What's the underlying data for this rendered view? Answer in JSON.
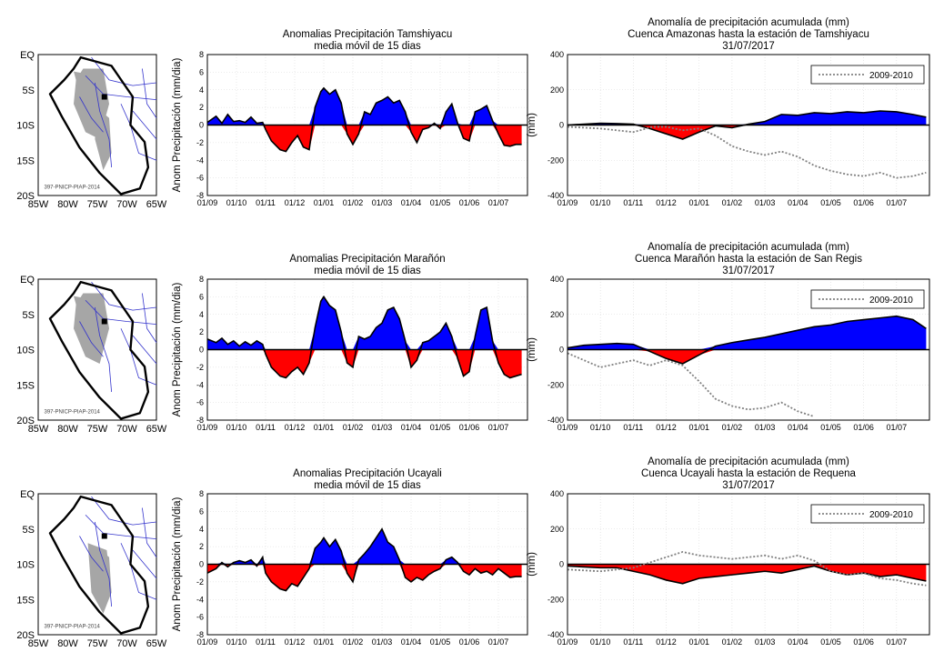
{
  "colors": {
    "positive": "#0000ff",
    "negative": "#ff0000",
    "line": "#000000",
    "map_fill": "#a6a6a6",
    "rivers": "#3333cc",
    "grid": "#d9d9d9",
    "ref": "#808080"
  },
  "map": {
    "y_ticks": [
      "EQ",
      "5S",
      "10S",
      "15S",
      "20S"
    ],
    "x_ticks": [
      "85W",
      "80W",
      "75W",
      "70W",
      "65W"
    ],
    "watermark": "397-PNICP-PIAP-2014"
  },
  "chart_data": [
    {
      "type": "area",
      "row": 0,
      "title": [
        "Anomalias Precipitación Tamshiyacu",
        "media móvil de 15 dias"
      ],
      "ylabel": "Anom Precipitación (mm/dia)",
      "ylim": [
        -8,
        8
      ],
      "yticks": [
        8,
        6,
        4,
        2,
        0,
        -2,
        -4,
        -6,
        -8
      ],
      "xticks": [
        "01/09",
        "01/10",
        "01/11",
        "01/12",
        "01/01",
        "01/02",
        "01/03",
        "01/04",
        "01/05",
        "01/06",
        "01/07"
      ],
      "x_unit": "month index from 01/09/2016",
      "x": [
        0,
        0.3,
        0.5,
        0.7,
        0.9,
        1.1,
        1.3,
        1.5,
        1.7,
        1.9,
        2.0,
        2.2,
        2.5,
        2.7,
        2.9,
        3.1,
        3.3,
        3.5,
        3.7,
        3.9,
        4.0,
        4.2,
        4.4,
        4.6,
        4.8,
        5.0,
        5.2,
        5.4,
        5.6,
        5.8,
        6.0,
        6.2,
        6.4,
        6.6,
        6.8,
        7.0,
        7.2,
        7.4,
        7.6,
        7.8,
        8.0,
        8.2,
        8.4,
        8.6,
        8.8,
        9.0,
        9.2,
        9.4,
        9.6,
        9.8,
        10.0,
        10.2,
        10.4,
        10.6,
        10.8
      ],
      "values": [
        0.3,
        1.0,
        0.2,
        1.2,
        0.4,
        0.5,
        0.3,
        0.9,
        0.2,
        0.3,
        -0.5,
        -1.8,
        -2.8,
        -3.0,
        -2.0,
        -1.2,
        -2.5,
        -2.8,
        2.0,
        3.8,
        4.2,
        3.5,
        4.0,
        2.5,
        -1.0,
        -2.2,
        -1.0,
        1.5,
        1.2,
        2.5,
        2.8,
        3.2,
        2.5,
        2.8,
        1.5,
        -0.8,
        -2.0,
        -0.5,
        -0.3,
        0.2,
        -0.4,
        1.5,
        2.4,
        0.2,
        -1.5,
        -1.8,
        1.5,
        1.8,
        2.2,
        0.5,
        -1.0,
        -2.3,
        -2.4,
        -2.2,
        -2.2
      ]
    },
    {
      "type": "area",
      "row": 0,
      "title": [
        "Anomalía de precipitación acumulada (mm)",
        "Cuenca Amazonas hasta la estación de Tamshiyacu",
        "31/07/2017"
      ],
      "ylabel": "(mm)",
      "ylim": [
        -400,
        400
      ],
      "yticks": [
        400,
        200,
        0,
        -200,
        -400
      ],
      "xticks": [
        "01/09",
        "01/10",
        "01/11",
        "01/12",
        "01/01",
        "01/02",
        "01/03",
        "01/04",
        "01/05",
        "01/06",
        "01/07"
      ],
      "x_unit": "month index from 01/09/2016",
      "legend": "2009-2010",
      "x": [
        0,
        0.5,
        1.0,
        1.5,
        2.0,
        2.5,
        3.0,
        3.5,
        4.0,
        4.5,
        5.0,
        5.5,
        6.0,
        6.5,
        7.0,
        7.5,
        8.0,
        8.5,
        9.0,
        9.5,
        10.0,
        10.5,
        10.9
      ],
      "values": [
        0,
        5,
        10,
        8,
        5,
        -20,
        -50,
        -80,
        -40,
        -5,
        -15,
        5,
        20,
        60,
        55,
        70,
        65,
        75,
        70,
        80,
        75,
        60,
        45
      ],
      "ref_x": [
        0,
        1.0,
        2.0,
        2.6,
        3.0,
        3.5,
        4.0,
        4.5,
        5.0,
        5.5,
        6.0,
        6.5,
        7.0,
        7.5,
        8.0,
        8.5,
        9.0,
        9.5,
        10.0,
        10.5,
        10.9
      ],
      "ref_values": [
        -10,
        -20,
        -40,
        -10,
        -10,
        -30,
        -20,
        -60,
        -120,
        -150,
        -170,
        -150,
        -180,
        -230,
        -260,
        -280,
        -290,
        -270,
        -300,
        -290,
        -270
      ]
    },
    {
      "type": "area",
      "row": 1,
      "title": [
        "Anomalias Precipitación Marañón",
        "media móvil de 15 dias"
      ],
      "ylabel": "Anom Precipitación (mm/dia)",
      "ylim": [
        -8,
        8
      ],
      "yticks": [
        8,
        6,
        4,
        2,
        0,
        -2,
        -4,
        -6,
        -8
      ],
      "xticks": [
        "01/09",
        "01/10",
        "01/11",
        "01/12",
        "01/01",
        "01/02",
        "01/03",
        "01/04",
        "01/05",
        "01/06",
        "01/07"
      ],
      "x_unit": "month index from 01/09/2016",
      "x": [
        0,
        0.3,
        0.5,
        0.7,
        0.9,
        1.1,
        1.3,
        1.5,
        1.7,
        1.9,
        2.0,
        2.2,
        2.5,
        2.7,
        2.9,
        3.1,
        3.3,
        3.5,
        3.7,
        3.9,
        4.0,
        4.2,
        4.4,
        4.6,
        4.8,
        5.0,
        5.2,
        5.4,
        5.6,
        5.8,
        6.0,
        6.2,
        6.4,
        6.6,
        6.8,
        7.0,
        7.2,
        7.4,
        7.6,
        7.8,
        8.0,
        8.2,
        8.4,
        8.6,
        8.8,
        9.0,
        9.2,
        9.4,
        9.6,
        9.8,
        10.0,
        10.2,
        10.4,
        10.6,
        10.8
      ],
      "values": [
        1.2,
        0.8,
        1.3,
        0.6,
        1.0,
        0.4,
        0.9,
        0.5,
        1.0,
        0.6,
        -0.5,
        -2.0,
        -3.0,
        -3.2,
        -2.5,
        -2.0,
        -2.8,
        -1.5,
        2.5,
        5.5,
        6.0,
        5.0,
        4.5,
        2.0,
        -1.5,
        -2.0,
        1.5,
        1.2,
        1.5,
        2.5,
        3.0,
        4.5,
        4.8,
        3.5,
        1.0,
        -2.0,
        -1.2,
        0.8,
        1.0,
        1.5,
        2.0,
        3.0,
        1.5,
        -1.0,
        -3.0,
        -2.5,
        1.5,
        4.5,
        4.8,
        1.0,
        -1.5,
        -2.8,
        -3.2,
        -3.0,
        -2.8
      ]
    },
    {
      "type": "area",
      "row": 1,
      "title": [
        "Anomalía de precipitación acumulada (mm)",
        "Cuenca Marañón hasta la estación de San Regis",
        "31/07/2017"
      ],
      "ylabel": "(mm)",
      "ylim": [
        -400,
        400
      ],
      "yticks": [
        400,
        200,
        0,
        -200,
        -400
      ],
      "xticks": [
        "01/09",
        "01/10",
        "01/11",
        "01/12",
        "01/01",
        "01/02",
        "01/03",
        "01/04",
        "01/05",
        "01/06",
        "01/07"
      ],
      "x_unit": "month index from 01/09/2016",
      "legend": "2009-2010",
      "x": [
        0,
        0.5,
        1.0,
        1.5,
        2.0,
        2.5,
        3.0,
        3.5,
        4.0,
        4.5,
        5.0,
        5.5,
        6.0,
        6.5,
        7.0,
        7.5,
        8.0,
        8.5,
        9.0,
        9.5,
        10.0,
        10.5,
        10.9
      ],
      "values": [
        10,
        25,
        30,
        35,
        30,
        -10,
        -50,
        -80,
        -30,
        20,
        40,
        55,
        70,
        90,
        110,
        130,
        140,
        160,
        170,
        180,
        190,
        170,
        120
      ],
      "ref_x": [
        0,
        0.5,
        1.0,
        1.5,
        2.0,
        2.5,
        3.0,
        3.5,
        4.0,
        4.5,
        5.0,
        5.5,
        6.0,
        6.5,
        7.0,
        7.5
      ],
      "ref_values": [
        -20,
        -60,
        -100,
        -80,
        -60,
        -90,
        -60,
        -90,
        -180,
        -280,
        -320,
        -340,
        -330,
        -300,
        -350,
        -380
      ]
    },
    {
      "type": "area",
      "row": 2,
      "title": [
        "Anomalias Precipitación Ucayali",
        "media móvil de 15 dias"
      ],
      "ylabel": "Anom Precipitación (mm/dia)",
      "ylim": [
        -8,
        8
      ],
      "yticks": [
        8,
        6,
        4,
        2,
        0,
        -2,
        -4,
        -6,
        -8
      ],
      "xticks": [
        "01/09",
        "01/10",
        "01/11",
        "01/12",
        "01/01",
        "01/02",
        "01/03",
        "01/04",
        "01/05",
        "01/06",
        "01/07"
      ],
      "x_unit": "month index from 01/09/2016",
      "x": [
        0,
        0.3,
        0.5,
        0.7,
        0.9,
        1.1,
        1.3,
        1.5,
        1.7,
        1.9,
        2.0,
        2.2,
        2.5,
        2.7,
        2.9,
        3.1,
        3.3,
        3.5,
        3.7,
        3.9,
        4.0,
        4.2,
        4.4,
        4.6,
        4.8,
        5.0,
        5.2,
        5.4,
        5.6,
        5.8,
        6.0,
        6.2,
        6.4,
        6.6,
        6.8,
        7.0,
        7.2,
        7.4,
        7.6,
        7.8,
        8.0,
        8.2,
        8.4,
        8.6,
        8.8,
        9.0,
        9.2,
        9.4,
        9.6,
        9.8,
        10.0,
        10.2,
        10.4,
        10.6,
        10.8
      ],
      "values": [
        -1.0,
        -0.5,
        0.2,
        -0.3,
        0.2,
        0.4,
        0.2,
        0.5,
        -0.2,
        0.8,
        -1.0,
        -2.0,
        -2.8,
        -3.0,
        -2.2,
        -2.5,
        -1.5,
        -0.5,
        1.8,
        2.5,
        3.0,
        2.0,
        2.8,
        1.5,
        -1.0,
        -2.0,
        0.5,
        1.2,
        2.0,
        3.0,
        4.0,
        2.5,
        2.0,
        0.5,
        -1.5,
        -2.0,
        -1.5,
        -1.8,
        -1.2,
        -0.8,
        -0.5,
        0.5,
        0.8,
        0.2,
        -0.8,
        -1.2,
        -0.5,
        -1.0,
        -0.8,
        -1.2,
        -0.5,
        -1.0,
        -1.5,
        -1.4,
        -1.4
      ]
    },
    {
      "type": "area",
      "row": 2,
      "title": [
        "Anomalía de precipitación acumulada (mm)",
        "Cuenca Ucayali hasta la estación de Requena",
        "31/07/2017"
      ],
      "ylabel": "(mm)",
      "ylim": [
        -400,
        400
      ],
      "yticks": [
        400,
        200,
        0,
        -200,
        -400
      ],
      "xticks": [
        "01/09",
        "01/10",
        "01/11",
        "01/12",
        "01/01",
        "01/02",
        "01/03",
        "01/04",
        "01/05",
        "01/06",
        "01/07"
      ],
      "x_unit": "month index from 01/09/2016",
      "legend": "2009-2010",
      "x": [
        0,
        0.5,
        1.0,
        1.5,
        2.0,
        2.5,
        3.0,
        3.5,
        4.0,
        4.5,
        5.0,
        5.5,
        6.0,
        6.5,
        7.0,
        7.5,
        8.0,
        8.5,
        9.0,
        9.5,
        10.0,
        10.5,
        10.9
      ],
      "values": [
        -10,
        -15,
        -20,
        -20,
        -40,
        -60,
        -90,
        -110,
        -80,
        -70,
        -60,
        -50,
        -40,
        -50,
        -30,
        -10,
        -40,
        -60,
        -50,
        -70,
        -60,
        -80,
        -95
      ],
      "ref_x": [
        0,
        1.0,
        2.0,
        2.5,
        3.0,
        3.5,
        4.0,
        4.5,
        5.0,
        5.5,
        6.0,
        6.5,
        7.0,
        7.5,
        8.0,
        8.5,
        9.0,
        9.5,
        10.0,
        10.5,
        10.9
      ],
      "ref_values": [
        -30,
        -40,
        -20,
        10,
        40,
        70,
        50,
        40,
        30,
        40,
        50,
        30,
        50,
        20,
        -40,
        -60,
        -50,
        -80,
        -90,
        -110,
        -120
      ]
    }
  ]
}
